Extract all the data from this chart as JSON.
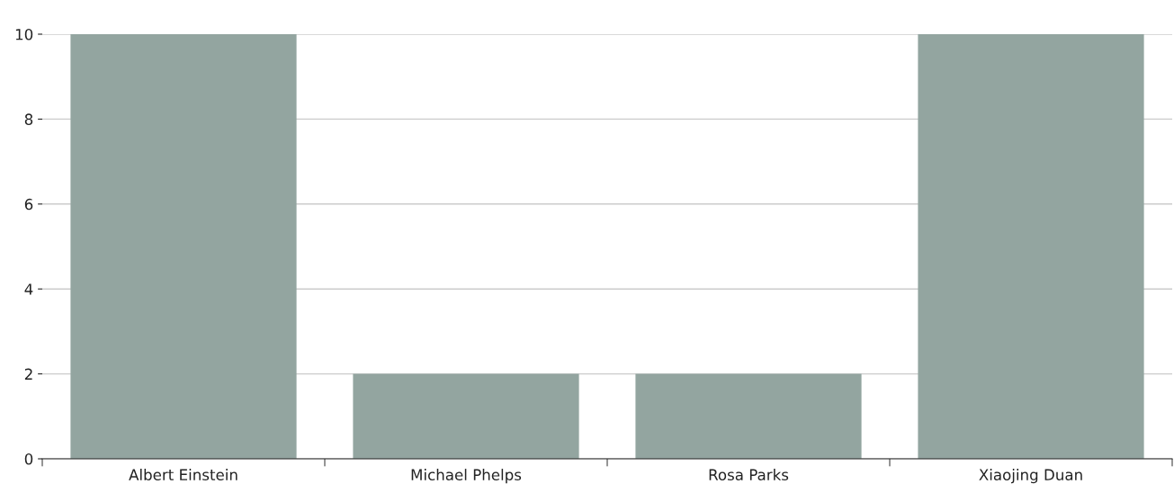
{
  "chart_data": {
    "type": "bar",
    "categories": [
      "Albert Einstein",
      "Michael Phelps",
      "Rosa Parks",
      "Xiaojing Duan"
    ],
    "values": [
      10,
      2,
      2,
      10
    ],
    "color": "#93a5a0",
    "ylim": [
      0,
      10
    ],
    "yticks": [
      0,
      2,
      4,
      6,
      8,
      10
    ],
    "grid": "y",
    "legend": false
  }
}
